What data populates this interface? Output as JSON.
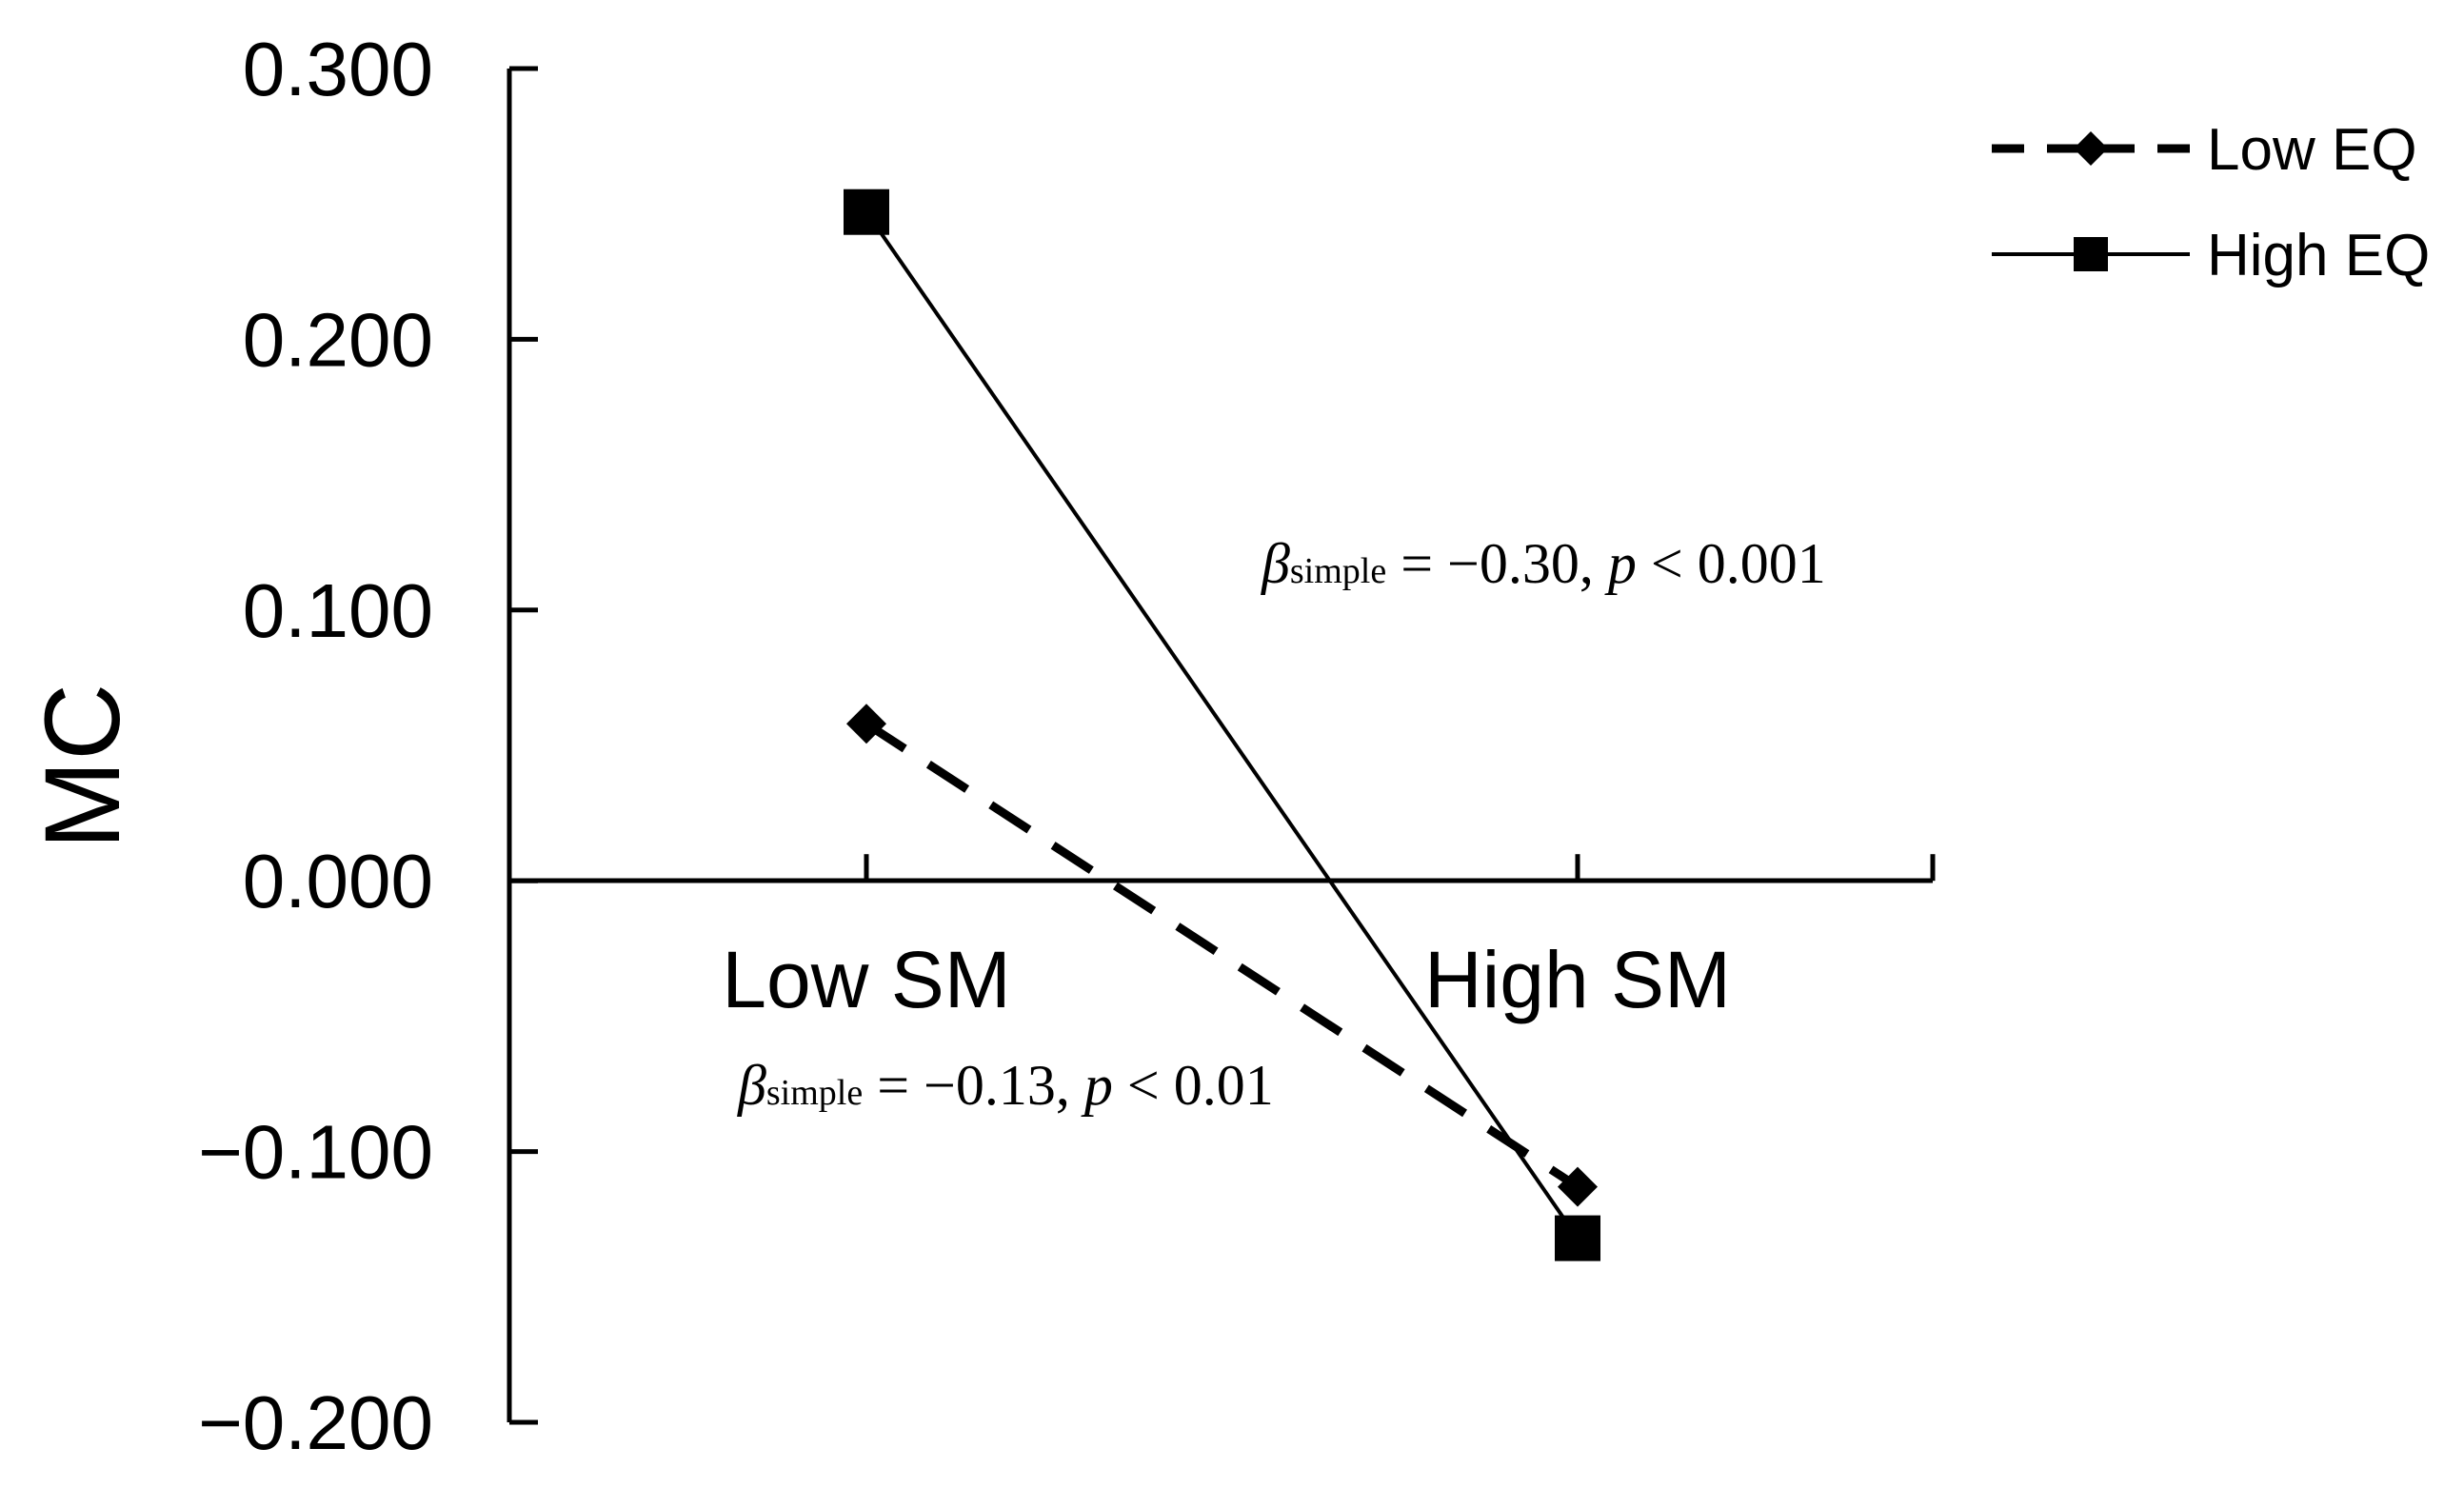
{
  "chart_data": {
    "type": "line",
    "ylabel": "MC",
    "xlabel": "",
    "categories": [
      "Low SM",
      "High SM"
    ],
    "ylim": [
      -0.2,
      0.3
    ],
    "yticks": [
      0.3,
      0.2,
      0.1,
      0.0,
      -0.1,
      -0.2
    ],
    "ytick_labels": [
      "0.300",
      "0.200",
      "0.100",
      "0.000",
      "−0.100",
      "−0.200"
    ],
    "grid": false,
    "legend_position": "top-right",
    "series": [
      {
        "name": "Low EQ",
        "values": [
          0.058,
          -0.113
        ],
        "style": "dashed",
        "marker": "diamond",
        "color": "#000000"
      },
      {
        "name": "High EQ",
        "values": [
          0.247,
          -0.132
        ],
        "style": "solid",
        "marker": "square",
        "color": "#000000"
      }
    ],
    "annotations": [
      {
        "symbol": "β",
        "sub": "simple",
        "rest": " = −0.30, ",
        "p": "p",
        "tail": " < 0.001"
      },
      {
        "symbol": "β",
        "sub": "simple",
        "rest": " = −0.13, ",
        "p": "p",
        "tail": " < 0.01"
      }
    ]
  }
}
